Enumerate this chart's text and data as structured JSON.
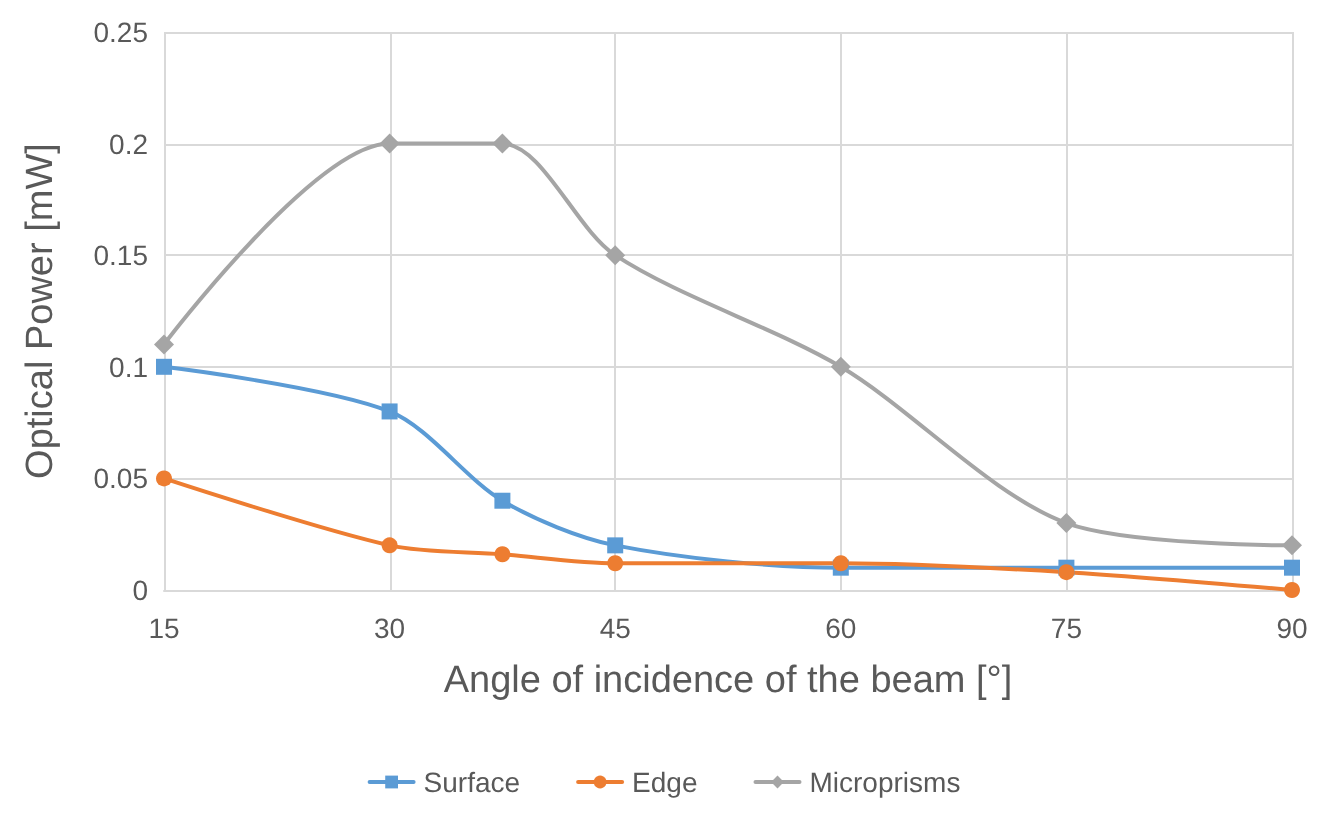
{
  "chart_data": {
    "type": "line",
    "xlabel": "Angle of incidence of the beam [°]",
    "ylabel": "Optical Power [mW]",
    "x": [
      15,
      30,
      37.5,
      45,
      60,
      75,
      90
    ],
    "series": [
      {
        "name": "Surface",
        "color": "#5b9bd5",
        "marker": "square",
        "values": [
          0.1,
          0.08,
          0.04,
          0.02,
          0.01,
          0.01,
          0.01
        ]
      },
      {
        "name": "Edge",
        "color": "#ed7d31",
        "marker": "circle",
        "values": [
          0.05,
          0.02,
          0.016,
          0.012,
          0.012,
          0.008,
          0
        ]
      },
      {
        "name": "Microprisms",
        "color": "#a5a5a5",
        "marker": "diamond",
        "values": [
          0.11,
          0.2,
          0.2,
          0.15,
          0.1,
          0.03,
          0.02
        ]
      }
    ],
    "xlim": [
      15,
      90
    ],
    "xticks": [
      15,
      30,
      45,
      60,
      75,
      90
    ],
    "ylim": [
      0,
      0.25
    ],
    "yticks": [
      0,
      0.05,
      0.1,
      0.15,
      0.2,
      0.25
    ],
    "grid": true,
    "legend": "bottom",
    "line_style": "solid"
  }
}
